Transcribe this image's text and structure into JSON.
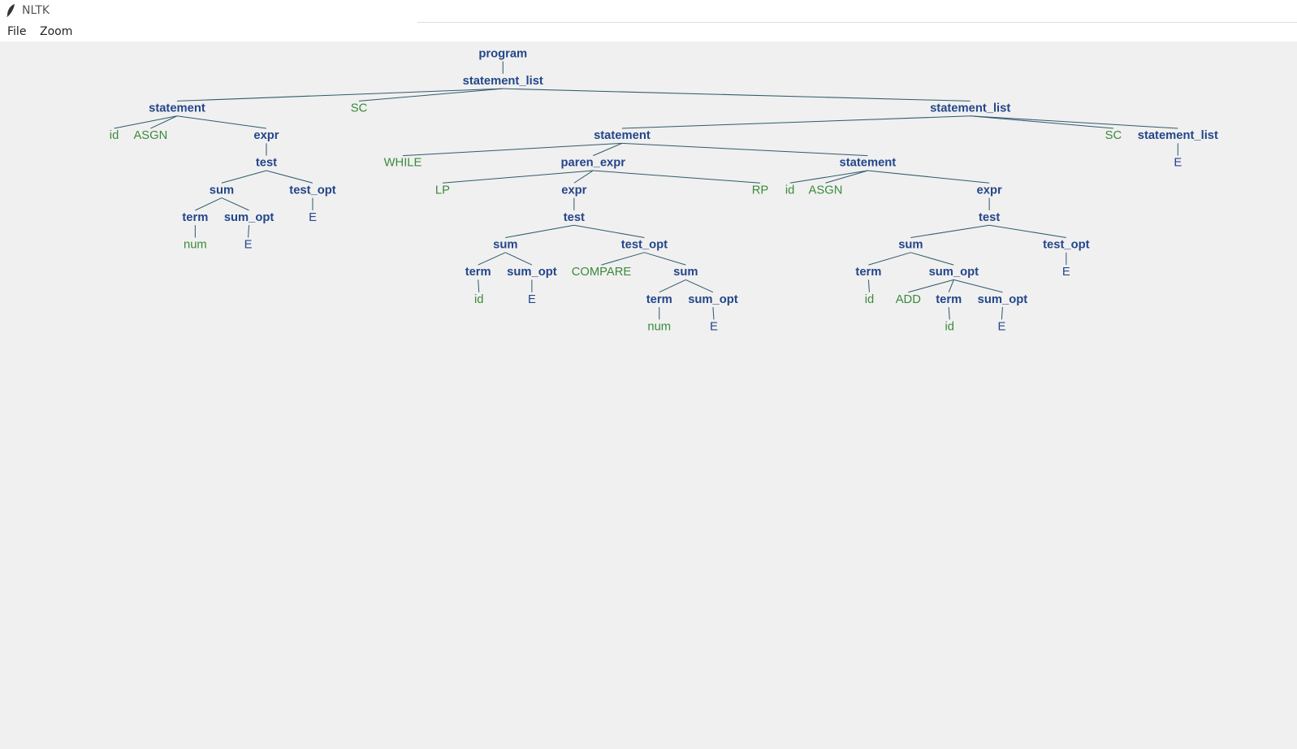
{
  "window": {
    "title": "NLTK",
    "menu": [
      "File",
      "Zoom"
    ]
  },
  "tree": {
    "nodes": [
      {
        "label": "program",
        "parent": null,
        "terminal": false
      },
      {
        "label": "statement_list",
        "parent": 0,
        "terminal": false
      },
      {
        "label": "statement",
        "parent": 1,
        "terminal": false
      },
      {
        "label": "SC",
        "parent": 1,
        "terminal": true
      },
      {
        "label": "statement_list",
        "parent": 1,
        "terminal": false
      },
      {
        "label": "id",
        "parent": 2,
        "terminal": true
      },
      {
        "label": "ASGN",
        "parent": 2,
        "terminal": true
      },
      {
        "label": "expr",
        "parent": 2,
        "terminal": false
      },
      {
        "label": "test",
        "parent": 7,
        "terminal": false
      },
      {
        "label": "sum",
        "parent": 8,
        "terminal": false
      },
      {
        "label": "test_opt",
        "parent": 8,
        "terminal": false
      },
      {
        "label": "term",
        "parent": 9,
        "terminal": false
      },
      {
        "label": "sum_opt",
        "parent": 9,
        "terminal": false
      },
      {
        "label": "E",
        "parent": 10,
        "terminal": false
      },
      {
        "label": "num",
        "parent": 11,
        "terminal": true
      },
      {
        "label": "E",
        "parent": 12,
        "terminal": false
      },
      {
        "label": "statement",
        "parent": 4,
        "terminal": false
      },
      {
        "label": "SC",
        "parent": 4,
        "terminal": true
      },
      {
        "label": "statement_list",
        "parent": 4,
        "terminal": false
      },
      {
        "label": "E",
        "parent": 18,
        "terminal": false
      },
      {
        "label": "WHILE",
        "parent": 16,
        "terminal": true
      },
      {
        "label": "paren_expr",
        "parent": 16,
        "terminal": false
      },
      {
        "label": "statement",
        "parent": 16,
        "terminal": false
      },
      {
        "label": "LP",
        "parent": 21,
        "terminal": true
      },
      {
        "label": "expr",
        "parent": 21,
        "terminal": false
      },
      {
        "label": "RP",
        "parent": 21,
        "terminal": true
      },
      {
        "label": "test",
        "parent": 24,
        "terminal": false
      },
      {
        "label": "sum",
        "parent": 26,
        "terminal": false
      },
      {
        "label": "test_opt",
        "parent": 26,
        "terminal": false
      },
      {
        "label": "term",
        "parent": 27,
        "terminal": false
      },
      {
        "label": "sum_opt",
        "parent": 27,
        "terminal": false
      },
      {
        "label": "COMPARE",
        "parent": 28,
        "terminal": true
      },
      {
        "label": "sum",
        "parent": 28,
        "terminal": false
      },
      {
        "label": "id",
        "parent": 29,
        "terminal": true
      },
      {
        "label": "E",
        "parent": 30,
        "terminal": false
      },
      {
        "label": "term",
        "parent": 32,
        "terminal": false
      },
      {
        "label": "sum_opt",
        "parent": 32,
        "terminal": false
      },
      {
        "label": "num",
        "parent": 35,
        "terminal": true
      },
      {
        "label": "E",
        "parent": 36,
        "terminal": false
      },
      {
        "label": "id",
        "parent": 22,
        "terminal": true
      },
      {
        "label": "ASGN",
        "parent": 22,
        "terminal": true
      },
      {
        "label": "expr",
        "parent": 22,
        "terminal": false
      },
      {
        "label": "test",
        "parent": 41,
        "terminal": false
      },
      {
        "label": "sum",
        "parent": 42,
        "terminal": false
      },
      {
        "label": "test_opt",
        "parent": 42,
        "terminal": false
      },
      {
        "label": "term",
        "parent": 43,
        "terminal": false
      },
      {
        "label": "sum_opt",
        "parent": 43,
        "terminal": false
      },
      {
        "label": "E",
        "parent": 44,
        "terminal": false
      },
      {
        "label": "id",
        "parent": 45,
        "terminal": true
      },
      {
        "label": "ADD",
        "parent": 46,
        "terminal": true
      },
      {
        "label": "term",
        "parent": 46,
        "terminal": false
      },
      {
        "label": "sum_opt",
        "parent": 46,
        "terminal": false
      },
      {
        "label": "id",
        "parent": 50,
        "terminal": true
      },
      {
        "label": "E",
        "parent": 51,
        "terminal": false
      }
    ]
  }
}
